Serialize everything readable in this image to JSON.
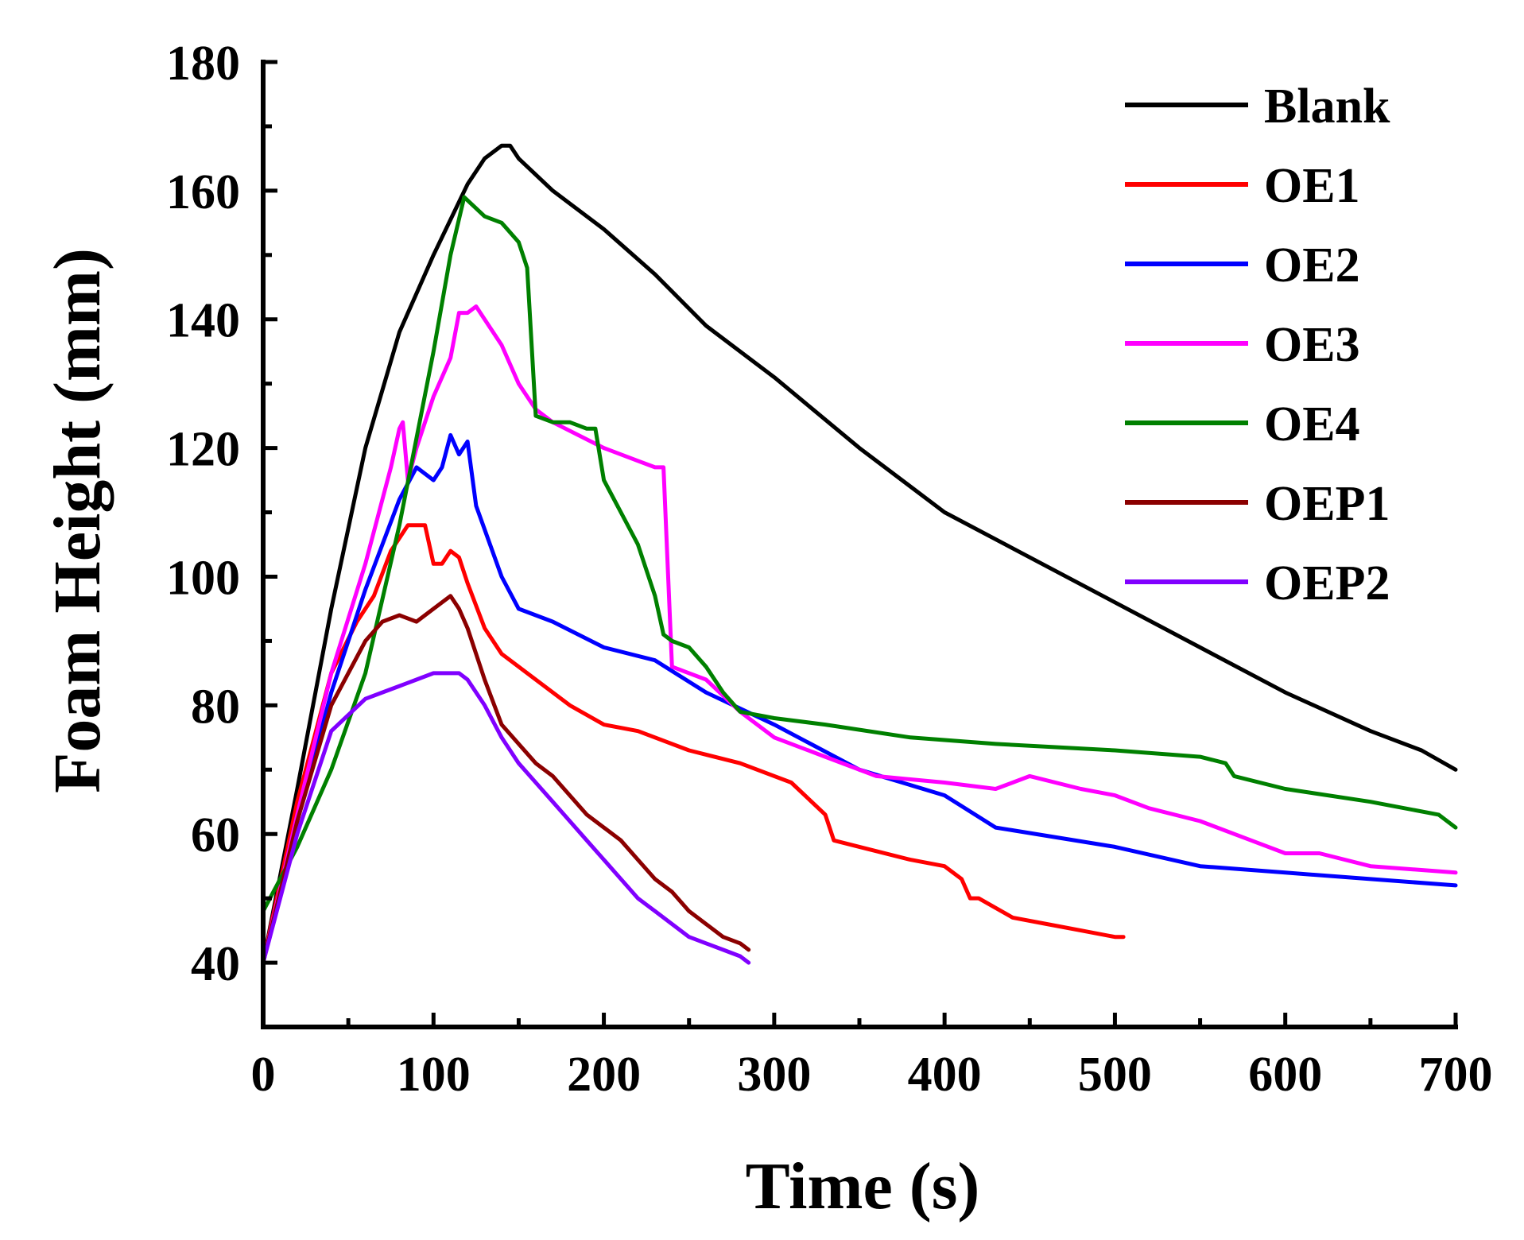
{
  "chart_data": {
    "type": "line",
    "title": "",
    "xlabel": "Time (s)",
    "ylabel": "Foam Height (mm)",
    "xlim": [
      0,
      700
    ],
    "ylim": [
      30,
      180
    ],
    "xticks": [
      0,
      100,
      200,
      300,
      400,
      500,
      600,
      700
    ],
    "yticks": [
      40,
      60,
      80,
      100,
      120,
      140,
      160,
      180
    ],
    "grid": false,
    "legend_position": "top-right",
    "series": [
      {
        "name": "Blank",
        "color": "#000000",
        "x": [
          0,
          20,
          40,
          60,
          80,
          100,
          120,
          130,
          140,
          145,
          150,
          170,
          200,
          230,
          260,
          300,
          350,
          400,
          450,
          500,
          550,
          600,
          650,
          680,
          700
        ],
        "y": [
          40,
          67,
          95,
          120,
          138,
          150,
          161,
          165,
          167,
          167,
          165,
          160,
          154,
          147,
          139,
          131,
          120,
          110,
          103,
          96,
          89,
          82,
          76,
          73,
          70
        ]
      },
      {
        "name": "OE1",
        "color": "#ff0000",
        "x": [
          0,
          20,
          40,
          55,
          65,
          75,
          85,
          95,
          100,
          105,
          110,
          115,
          120,
          130,
          140,
          160,
          180,
          200,
          220,
          250,
          280,
          310,
          330,
          335,
          350,
          380,
          400,
          410,
          415,
          420,
          440,
          460,
          480,
          500,
          505
        ],
        "y": [
          40,
          65,
          85,
          93,
          97,
          104,
          108,
          108,
          102,
          102,
          104,
          103,
          99,
          92,
          88,
          84,
          80,
          77,
          76,
          73,
          71,
          68,
          63,
          59,
          58,
          56,
          55,
          53,
          50,
          50,
          47,
          46,
          45,
          44,
          44
        ]
      },
      {
        "name": "OE2",
        "color": "#0000ff",
        "x": [
          0,
          20,
          40,
          60,
          70,
          80,
          90,
          100,
          105,
          110,
          115,
          120,
          125,
          140,
          150,
          170,
          200,
          230,
          260,
          300,
          350,
          400,
          430,
          500,
          550,
          600,
          650,
          700
        ],
        "y": [
          40,
          62,
          82,
          98,
          105,
          112,
          117,
          115,
          117,
          122,
          119,
          121,
          111,
          100,
          95,
          93,
          89,
          87,
          82,
          77,
          70,
          66,
          61,
          58,
          55,
          54,
          53,
          52
        ]
      },
      {
        "name": "OE3",
        "color": "#ff00ff",
        "x": [
          0,
          20,
          40,
          60,
          75,
          80,
          82,
          85,
          90,
          95,
          100,
          110,
          115,
          120,
          125,
          130,
          140,
          150,
          160,
          170,
          200,
          220,
          230,
          235,
          240,
          260,
          280,
          300,
          330,
          360,
          400,
          430,
          450,
          480,
          500,
          520,
          550,
          580,
          600,
          620,
          650,
          700
        ],
        "y": [
          40,
          63,
          85,
          102,
          117,
          123,
          124,
          115,
          120,
          124,
          128,
          134,
          141,
          141,
          142,
          140,
          136,
          130,
          126,
          124,
          120,
          118,
          117,
          117,
          86,
          84,
          79,
          75,
          72,
          69,
          68,
          67,
          69,
          67,
          66,
          64,
          62,
          59,
          57,
          57,
          55,
          54
        ]
      },
      {
        "name": "OE4",
        "color": "#008000",
        "x": [
          0,
          20,
          40,
          60,
          80,
          100,
          110,
          118,
          122,
          130,
          140,
          150,
          155,
          160,
          170,
          180,
          190,
          195,
          200,
          210,
          220,
          230,
          235,
          240,
          250,
          260,
          270,
          280,
          300,
          330,
          380,
          430,
          500,
          550,
          565,
          570,
          600,
          650,
          690,
          700
        ],
        "y": [
          48,
          58,
          70,
          85,
          108,
          135,
          150,
          159,
          158,
          156,
          155,
          152,
          148,
          125,
          124,
          124,
          123,
          123,
          115,
          110,
          105,
          97,
          91,
          90,
          89,
          86,
          82,
          79,
          78,
          77,
          75,
          74,
          73,
          72,
          71,
          69,
          67,
          65,
          63,
          61
        ]
      },
      {
        "name": "OEP1",
        "color": "#8b0000",
        "x": [
          0,
          20,
          40,
          60,
          70,
          80,
          90,
          100,
          110,
          115,
          120,
          130,
          140,
          150,
          160,
          170,
          180,
          190,
          200,
          210,
          220,
          230,
          240,
          250,
          260,
          270,
          280,
          285
        ],
        "y": [
          40,
          62,
          80,
          90,
          93,
          94,
          93,
          95,
          97,
          95,
          92,
          84,
          77,
          74,
          71,
          69,
          66,
          63,
          61,
          59,
          56,
          53,
          51,
          48,
          46,
          44,
          43,
          42
        ]
      },
      {
        "name": "OEP2",
        "color": "#8000ff",
        "x": [
          0,
          20,
          40,
          60,
          70,
          80,
          90,
          100,
          110,
          115,
          120,
          130,
          140,
          150,
          160,
          170,
          180,
          190,
          200,
          210,
          220,
          230,
          240,
          250,
          260,
          270,
          280,
          285
        ],
        "y": [
          40,
          60,
          76,
          81,
          82,
          83,
          84,
          85,
          85,
          85,
          84,
          80,
          75,
          71,
          68,
          65,
          62,
          59,
          56,
          53,
          50,
          48,
          46,
          44,
          43,
          42,
          41,
          40
        ]
      }
    ]
  }
}
